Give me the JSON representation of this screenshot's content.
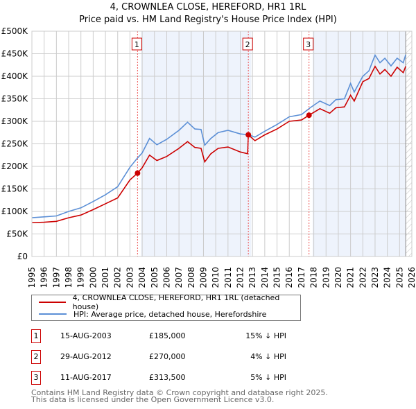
{
  "chart_data": {
    "type": "line",
    "title": "4, CROWNLEA CLOSE, HEREFORD, HR1 1RL",
    "subtitle": "Price paid vs. HM Land Registry's House Price Index (HPI)",
    "xlim": [
      1995,
      2026
    ],
    "ylim": [
      0,
      500000
    ],
    "yticks": [
      0,
      50000,
      100000,
      150000,
      200000,
      250000,
      300000,
      350000,
      400000,
      450000,
      500000
    ],
    "ytick_labels": [
      "£0",
      "£50K",
      "£100K",
      "£150K",
      "£200K",
      "£250K",
      "£300K",
      "£350K",
      "£400K",
      "£450K",
      "£500K"
    ],
    "xticks": [
      1995,
      1996,
      1997,
      1998,
      1999,
      2000,
      2001,
      2002,
      2003,
      2004,
      2005,
      2006,
      2007,
      2008,
      2009,
      2010,
      2011,
      2012,
      2013,
      2014,
      2015,
      2016,
      2017,
      2018,
      2019,
      2020,
      2021,
      2022,
      2023,
      2024,
      2025,
      2026
    ],
    "grid": true,
    "colors": {
      "property": "#cc0000",
      "hpi": "#5b8fd6",
      "shade": "#eef3fc"
    },
    "series": [
      {
        "name": "4, CROWNLEA CLOSE, HEREFORD, HR1 1RL (detached house)",
        "x": [
          1995,
          1996,
          1997,
          1998,
          1999,
          2000,
          2001,
          2002,
          2003,
          2003.62,
          2004,
          2004.6,
          2005.2,
          2006,
          2007,
          2007.7,
          2008.3,
          2008.8,
          2009.1,
          2009.6,
          2010.2,
          2011,
          2012,
          2012.6,
          2012.66,
          2013.2,
          2014,
          2015,
          2016,
          2017,
          2017.61,
          2018.5,
          2019.3,
          2019.8,
          2020.5,
          2021,
          2021.3,
          2022,
          2022.5,
          2023,
          2023.4,
          2023.8,
          2024.3,
          2024.8,
          2025.3,
          2025.5
        ],
        "y": [
          75000,
          76000,
          78000,
          86000,
          92000,
          104000,
          117000,
          130000,
          170000,
          185000,
          197000,
          225000,
          213000,
          222000,
          240000,
          255000,
          242000,
          240000,
          210000,
          228000,
          240000,
          243000,
          232000,
          228000,
          270000,
          257000,
          270000,
          283000,
          300000,
          303000,
          313500,
          328000,
          318000,
          330000,
          332000,
          358000,
          345000,
          388000,
          395000,
          422000,
          405000,
          415000,
          400000,
          420000,
          408000,
          422000
        ]
      },
      {
        "name": "HPI: Average price, detached house, Herefordshire",
        "x": [
          1995,
          1996,
          1997,
          1998,
          1999,
          2000,
          2001,
          2002,
          2003,
          2003.6,
          2004,
          2004.6,
          2005.2,
          2006,
          2007,
          2007.7,
          2008.3,
          2008.8,
          2009.1,
          2009.6,
          2010.2,
          2011,
          2012,
          2012.7,
          2013.2,
          2014,
          2015,
          2016,
          2017,
          2017.7,
          2018.5,
          2019.3,
          2019.8,
          2020.5,
          2021,
          2021.3,
          2022,
          2022.5,
          2023,
          2023.4,
          2023.8,
          2024.3,
          2024.8,
          2025.3,
          2025.5
        ],
        "y": [
          86000,
          88000,
          90000,
          100000,
          108000,
          122000,
          137000,
          155000,
          198000,
          218000,
          230000,
          262000,
          248000,
          260000,
          280000,
          298000,
          283000,
          282000,
          247000,
          262000,
          275000,
          280000,
          272000,
          270000,
          265000,
          278000,
          293000,
          310000,
          315000,
          330000,
          345000,
          335000,
          348000,
          350000,
          384000,
          365000,
          400000,
          412000,
          447000,
          430000,
          440000,
          423000,
          440000,
          430000,
          448000
        ]
      }
    ],
    "sales": [
      {
        "label": "1",
        "x": 2003.62,
        "y": 185000
      },
      {
        "label": "2",
        "x": 2012.66,
        "y": 270000
      },
      {
        "label": "3",
        "x": 2017.61,
        "y": 313500
      }
    ],
    "shaded": [
      [
        2003.9,
        2012.9
      ],
      [
        2017.9,
        2025.5
      ]
    ],
    "data_end": 2025.5
  },
  "legend": [
    "4, CROWNLEA CLOSE, HEREFORD, HR1 1RL (detached house)",
    "HPI: Average price, detached house, Herefordshire"
  ],
  "transactions": [
    {
      "num": "1",
      "date": "15-AUG-2003",
      "price": "£185,000",
      "hpi": "15% ↓ HPI"
    },
    {
      "num": "2",
      "date": "29-AUG-2012",
      "price": "£270,000",
      "hpi": "4% ↓ HPI"
    },
    {
      "num": "3",
      "date": "11-AUG-2017",
      "price": "£313,500",
      "hpi": "5% ↓ HPI"
    }
  ],
  "footer": [
    "Contains HM Land Registry data © Crown copyright and database right 2025.",
    "This data is licensed under the Open Government Licence v3.0."
  ]
}
